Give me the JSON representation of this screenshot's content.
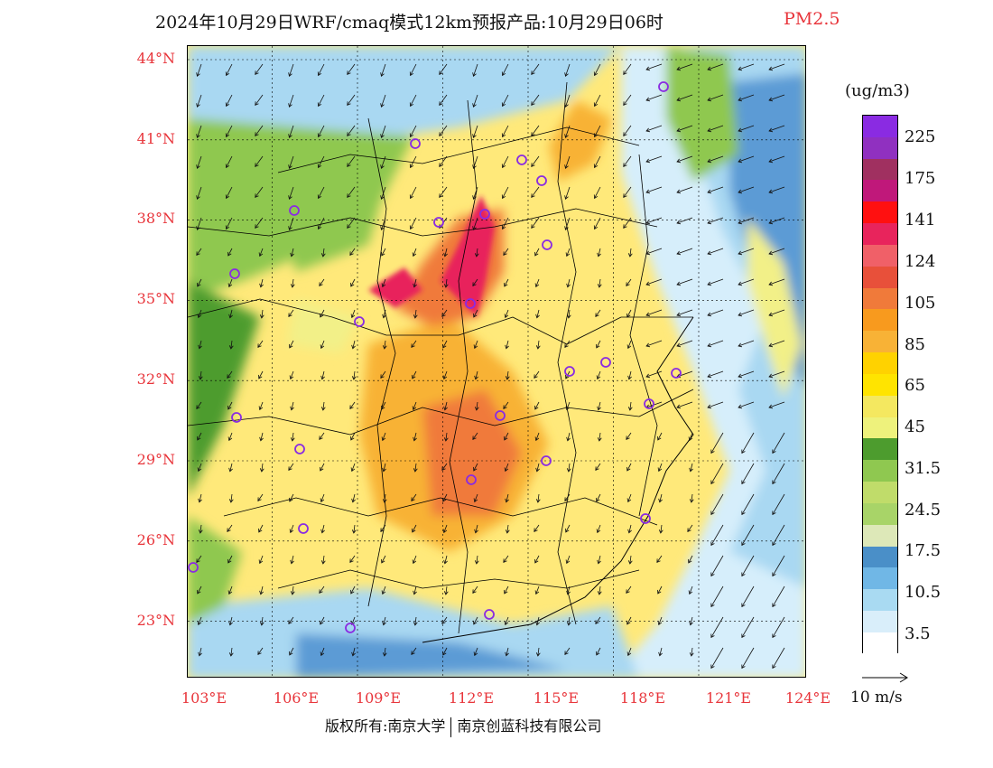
{
  "title": {
    "main": "2024年10月29日WRF/cmaq模式12km预报产品:10月29日06时",
    "species": "PM2.5"
  },
  "map": {
    "lat_labels": [
      "44°N",
      "41°N",
      "38°N",
      "35°N",
      "32°N",
      "29°N",
      "26°N",
      "23°N"
    ],
    "lon_labels": [
      "103°E",
      "106°E",
      "109°E",
      "112°E",
      "115°E",
      "118°E",
      "121°E",
      "124°E"
    ],
    "colors": {
      "very_high": "#e8245c",
      "high": "#f07a3a",
      "moderate": "#f8b236",
      "mid": "#ffe400",
      "low_mid": "#f2f088",
      "clean_green": "#8fc850",
      "clean_green_dark": "#4d9c2e",
      "pale": "#dde8b8",
      "sea_blue": "#5b9bd5",
      "sea_light": "#a9d8f2",
      "sea_pale": "#d6eefb",
      "station_marker": "#8a2be2"
    }
  },
  "legend": {
    "unit": "(ug/m3)",
    "labels": [
      "225",
      "175",
      "141",
      "124",
      "105",
      "85",
      "65",
      "45",
      "31.5",
      "24.5",
      "17.5",
      "10.5",
      "3.5"
    ],
    "colors": [
      "#ffffff",
      "#d9eefa",
      "#a9daf2",
      "#70b7e6",
      "#4a8fc8",
      "#dde8b8",
      "#a8d468",
      "#c0dc6a",
      "#8fc850",
      "#4d9c2e",
      "#eef27c",
      "#f4e860",
      "#ffe400",
      "#ffd200",
      "#f8b236",
      "#f89a1e",
      "#f07a3a",
      "#e8503a",
      "#f06068",
      "#e8245c",
      "#ff1010",
      "#c0187a",
      "#a03060",
      "#9030c0",
      "#8a2be2"
    ]
  },
  "vector_key": {
    "label": "10 m/s"
  },
  "footer": {
    "left": "版权所有:南京大学",
    "right": "南京创蓝科技有限公司"
  }
}
